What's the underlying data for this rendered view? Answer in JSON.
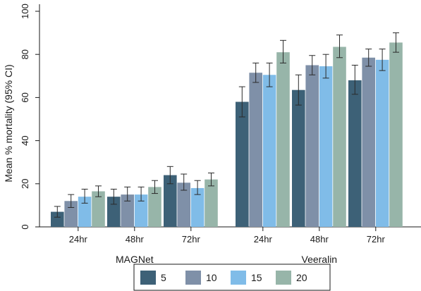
{
  "chart_data": {
    "type": "bar",
    "ylabel": "Mean % mortality (95% CI)",
    "ylim": [
      0,
      100
    ],
    "yticks": [
      0,
      20,
      40,
      60,
      80,
      100
    ],
    "grid": false,
    "legend": {
      "placement": "bottom",
      "entries": [
        "5",
        "10",
        "15",
        "20"
      ]
    },
    "series_colors": [
      "#3d6177",
      "#7f90a8",
      "#80bce8",
      "#97b5a9"
    ],
    "groups": [
      {
        "label": "MAGNet",
        "categories": [
          {
            "label": "24hr",
            "values": [
              7,
              12,
              14,
              16.5
            ],
            "ci_low": [
              4.5,
              9,
              11,
              14
            ],
            "ci_high": [
              9.5,
              15,
              17.5,
              19
            ]
          },
          {
            "label": "48hr",
            "values": [
              14,
              15,
              15,
              18.5
            ],
            "ci_low": [
              10.5,
              12,
              12,
              15.5
            ],
            "ci_high": [
              17.5,
              18.5,
              18.5,
              21.5
            ]
          },
          {
            "label": "72hr",
            "values": [
              24,
              20.5,
              18,
              22
            ],
            "ci_low": [
              20,
              17,
              15,
              19
            ],
            "ci_high": [
              28,
              24.5,
              21.5,
              25
            ]
          }
        ]
      },
      {
        "label": "Veeralin",
        "categories": [
          {
            "label": "24hr",
            "values": [
              58,
              71.5,
              70.5,
              81
            ],
            "ci_low": [
              51,
              67,
              65,
              76
            ],
            "ci_high": [
              65,
              76,
              76,
              86.5
            ]
          },
          {
            "label": "48hr",
            "values": [
              63.5,
              75,
              74.5,
              83.5
            ],
            "ci_low": [
              56.5,
              70.5,
              69,
              78.5
            ],
            "ci_high": [
              70.5,
              79.5,
              80,
              89
            ]
          },
          {
            "label": "72hr",
            "values": [
              68,
              78.5,
              77.5,
              85.5
            ],
            "ci_low": [
              61.5,
              74.5,
              72.5,
              81
            ],
            "ci_high": [
              75,
              82.5,
              82.5,
              90
            ]
          }
        ]
      }
    ]
  }
}
